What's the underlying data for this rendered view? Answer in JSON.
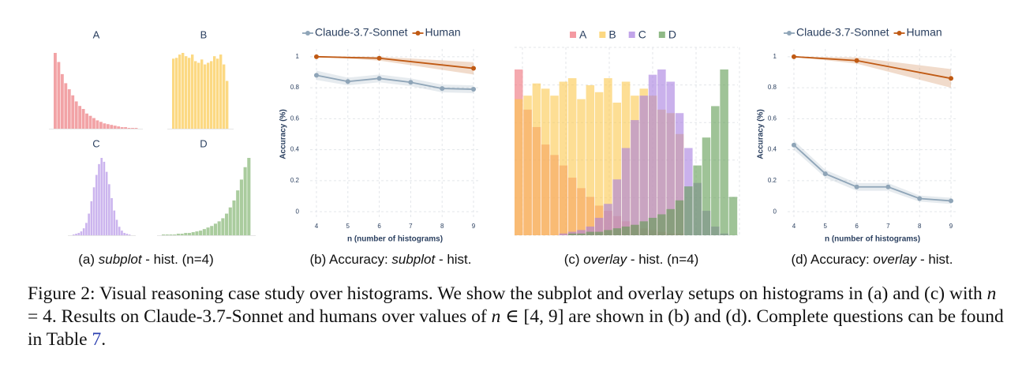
{
  "chart_data": [
    {
      "type": "histogram_grid",
      "series": [
        {
          "name": "A",
          "color": "#f2a3a6",
          "values": [
            100,
            88,
            72,
            60,
            52,
            44,
            36,
            30,
            26,
            20,
            17,
            14,
            11,
            9,
            7,
            6,
            5,
            4,
            3,
            2,
            2,
            1,
            1,
            1
          ]
        },
        {
          "name": "B",
          "color": "#fcd983",
          "values": [
            85,
            86,
            90,
            92,
            88,
            86,
            90,
            82,
            80,
            84,
            78,
            80,
            82,
            88,
            85,
            90,
            78,
            58
          ]
        },
        {
          "name": "C",
          "color": "#cbb4ee",
          "values": [
            1,
            2,
            3,
            5,
            9,
            16,
            28,
            44,
            62,
            78,
            92,
            100,
            95,
            82,
            66,
            48,
            32,
            20,
            11,
            6,
            3,
            2,
            1
          ]
        },
        {
          "name": "D",
          "color": "#aacc9e",
          "values": [
            1,
            1,
            1,
            1,
            2,
            2,
            3,
            3,
            4,
            5,
            6,
            8,
            10,
            12,
            15,
            18,
            22,
            28,
            36,
            45,
            58,
            72,
            88,
            100
          ]
        }
      ],
      "caption": [
        "(a) ",
        "subplot",
        " - hist. (n=4)"
      ]
    },
    {
      "type": "line",
      "series": [
        {
          "name": "Claude-3.7-Sonnet",
          "color": "#8fa5b8",
          "x": [
            4,
            5,
            6,
            7,
            8,
            9
          ],
          "values": [
            0.88,
            0.84,
            0.86,
            0.835,
            0.795,
            0.79
          ],
          "lower": [
            0.85,
            0.815,
            0.835,
            0.81,
            0.77,
            0.765
          ],
          "upper": [
            0.91,
            0.865,
            0.885,
            0.86,
            0.82,
            0.815
          ]
        },
        {
          "name": "Human",
          "color": "#c05a14",
          "x": [
            4,
            6,
            9
          ],
          "values": [
            1,
            0.99,
            0.925
          ],
          "lower": [
            1,
            0.975,
            0.885
          ],
          "upper": [
            1,
            1,
            0.965
          ]
        }
      ],
      "xlim": [
        3.8,
        9.2
      ],
      "xticks": [
        4,
        5,
        6,
        7,
        8,
        9
      ],
      "ylim": [
        -0.05,
        1.05
      ],
      "yticks": [
        0,
        0.2,
        0.4,
        0.6,
        0.8,
        1
      ],
      "xlabel": "n (number of histograms)",
      "ylabel": "Accuracy (%)",
      "grid": true,
      "caption": [
        "(b) Accuracy: ",
        "subplot",
        " - hist."
      ]
    },
    {
      "type": "histogram",
      "series": [
        {
          "name": "A",
          "color": "#ef6f7a",
          "values": [
            95,
            72,
            62,
            52,
            46,
            40,
            33,
            27,
            22,
            17,
            14,
            11,
            8,
            6,
            4,
            3,
            2,
            1,
            1,
            0,
            0,
            0,
            0,
            0,
            0
          ]
        },
        {
          "name": "B",
          "color": "#fbc84d",
          "values": [
            78,
            80,
            87,
            84,
            80,
            88,
            90,
            78,
            86,
            82,
            90,
            76,
            88,
            80,
            84,
            80,
            72,
            70,
            58,
            0,
            0,
            0,
            0,
            0,
            0
          ]
        },
        {
          "name": "C",
          "color": "#a77de0",
          "values": [
            0,
            0,
            0,
            0,
            0,
            1,
            2,
            3,
            5,
            10,
            18,
            32,
            50,
            66,
            80,
            92,
            95,
            88,
            70,
            50,
            30,
            14,
            5,
            1,
            0
          ]
        },
        {
          "name": "D",
          "color": "#5f9b52",
          "values": [
            0,
            0,
            0,
            0,
            0,
            0,
            1,
            1,
            2,
            2,
            3,
            4,
            5,
            6,
            8,
            10,
            12,
            15,
            20,
            28,
            40,
            56,
            74,
            95,
            22
          ]
        }
      ],
      "grid": true,
      "caption": [
        "(c) ",
        "overlay",
        " - hist. (n=4)"
      ]
    },
    {
      "type": "line",
      "series": [
        {
          "name": "Claude-3.7-Sonnet",
          "color": "#8fa5b8",
          "x": [
            4,
            5,
            6,
            7,
            8,
            9
          ],
          "values": [
            0.43,
            0.245,
            0.16,
            0.16,
            0.085,
            0.07
          ],
          "lower": [
            0.4,
            0.22,
            0.135,
            0.135,
            0.065,
            0.05
          ],
          "upper": [
            0.46,
            0.27,
            0.185,
            0.185,
            0.105,
            0.09
          ]
        },
        {
          "name": "Human",
          "color": "#c05a14",
          "x": [
            4,
            6,
            9
          ],
          "values": [
            1,
            0.975,
            0.86
          ],
          "lower": [
            1,
            0.955,
            0.8
          ],
          "upper": [
            1,
            0.995,
            0.92
          ]
        }
      ],
      "xlim": [
        3.8,
        9.2
      ],
      "xticks": [
        4,
        5,
        6,
        7,
        8,
        9
      ],
      "ylim": [
        -0.05,
        1.05
      ],
      "yticks": [
        0,
        0.2,
        0.4,
        0.6,
        0.8,
        1
      ],
      "xlabel": "n (number of histograms)",
      "ylabel": "Accuracy (%)",
      "grid": true,
      "caption": [
        "(d) Accuracy: ",
        "overlay",
        " - hist."
      ]
    }
  ],
  "figure_caption": [
    "Figure 2: Visual reasoning case study over histograms. We show the subplot and overlay setups on histograms in (a) and (c) with ",
    "n",
    " = 4. Results on Claude-3.7-Sonnet and humans over values of ",
    "n",
    " ∈ [4, 9] are shown in (b) and (d). Complete questions can be found in Table ",
    "7",
    "."
  ]
}
